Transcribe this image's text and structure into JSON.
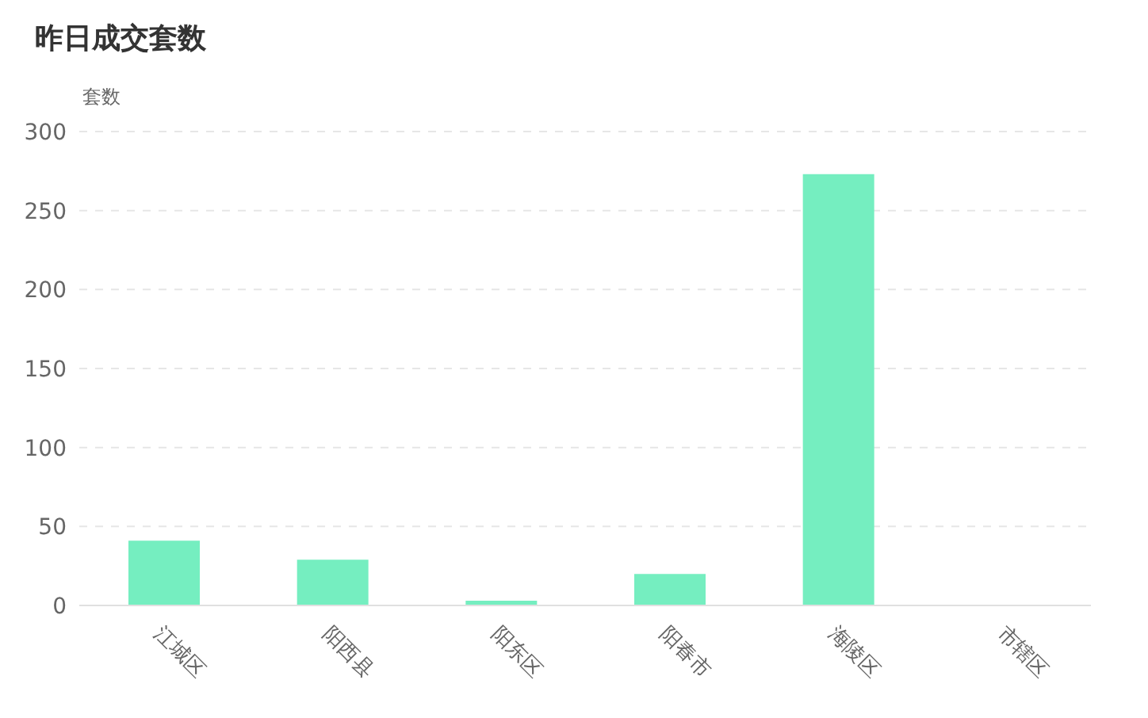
{
  "chart_data": {
    "type": "bar",
    "title": "昨日成交套数",
    "ylabel": "套数",
    "categories": [
      "江城区",
      "阳西县",
      "阳东区",
      "阳春市",
      "海陵区",
      "市辖区"
    ],
    "values": [
      41,
      29,
      3,
      20,
      273,
      0
    ],
    "color": "#75eec0",
    "ylim": [
      0,
      300
    ],
    "yticks": [
      0,
      50,
      100,
      150,
      200,
      250,
      300
    ],
    "grid": "y"
  }
}
